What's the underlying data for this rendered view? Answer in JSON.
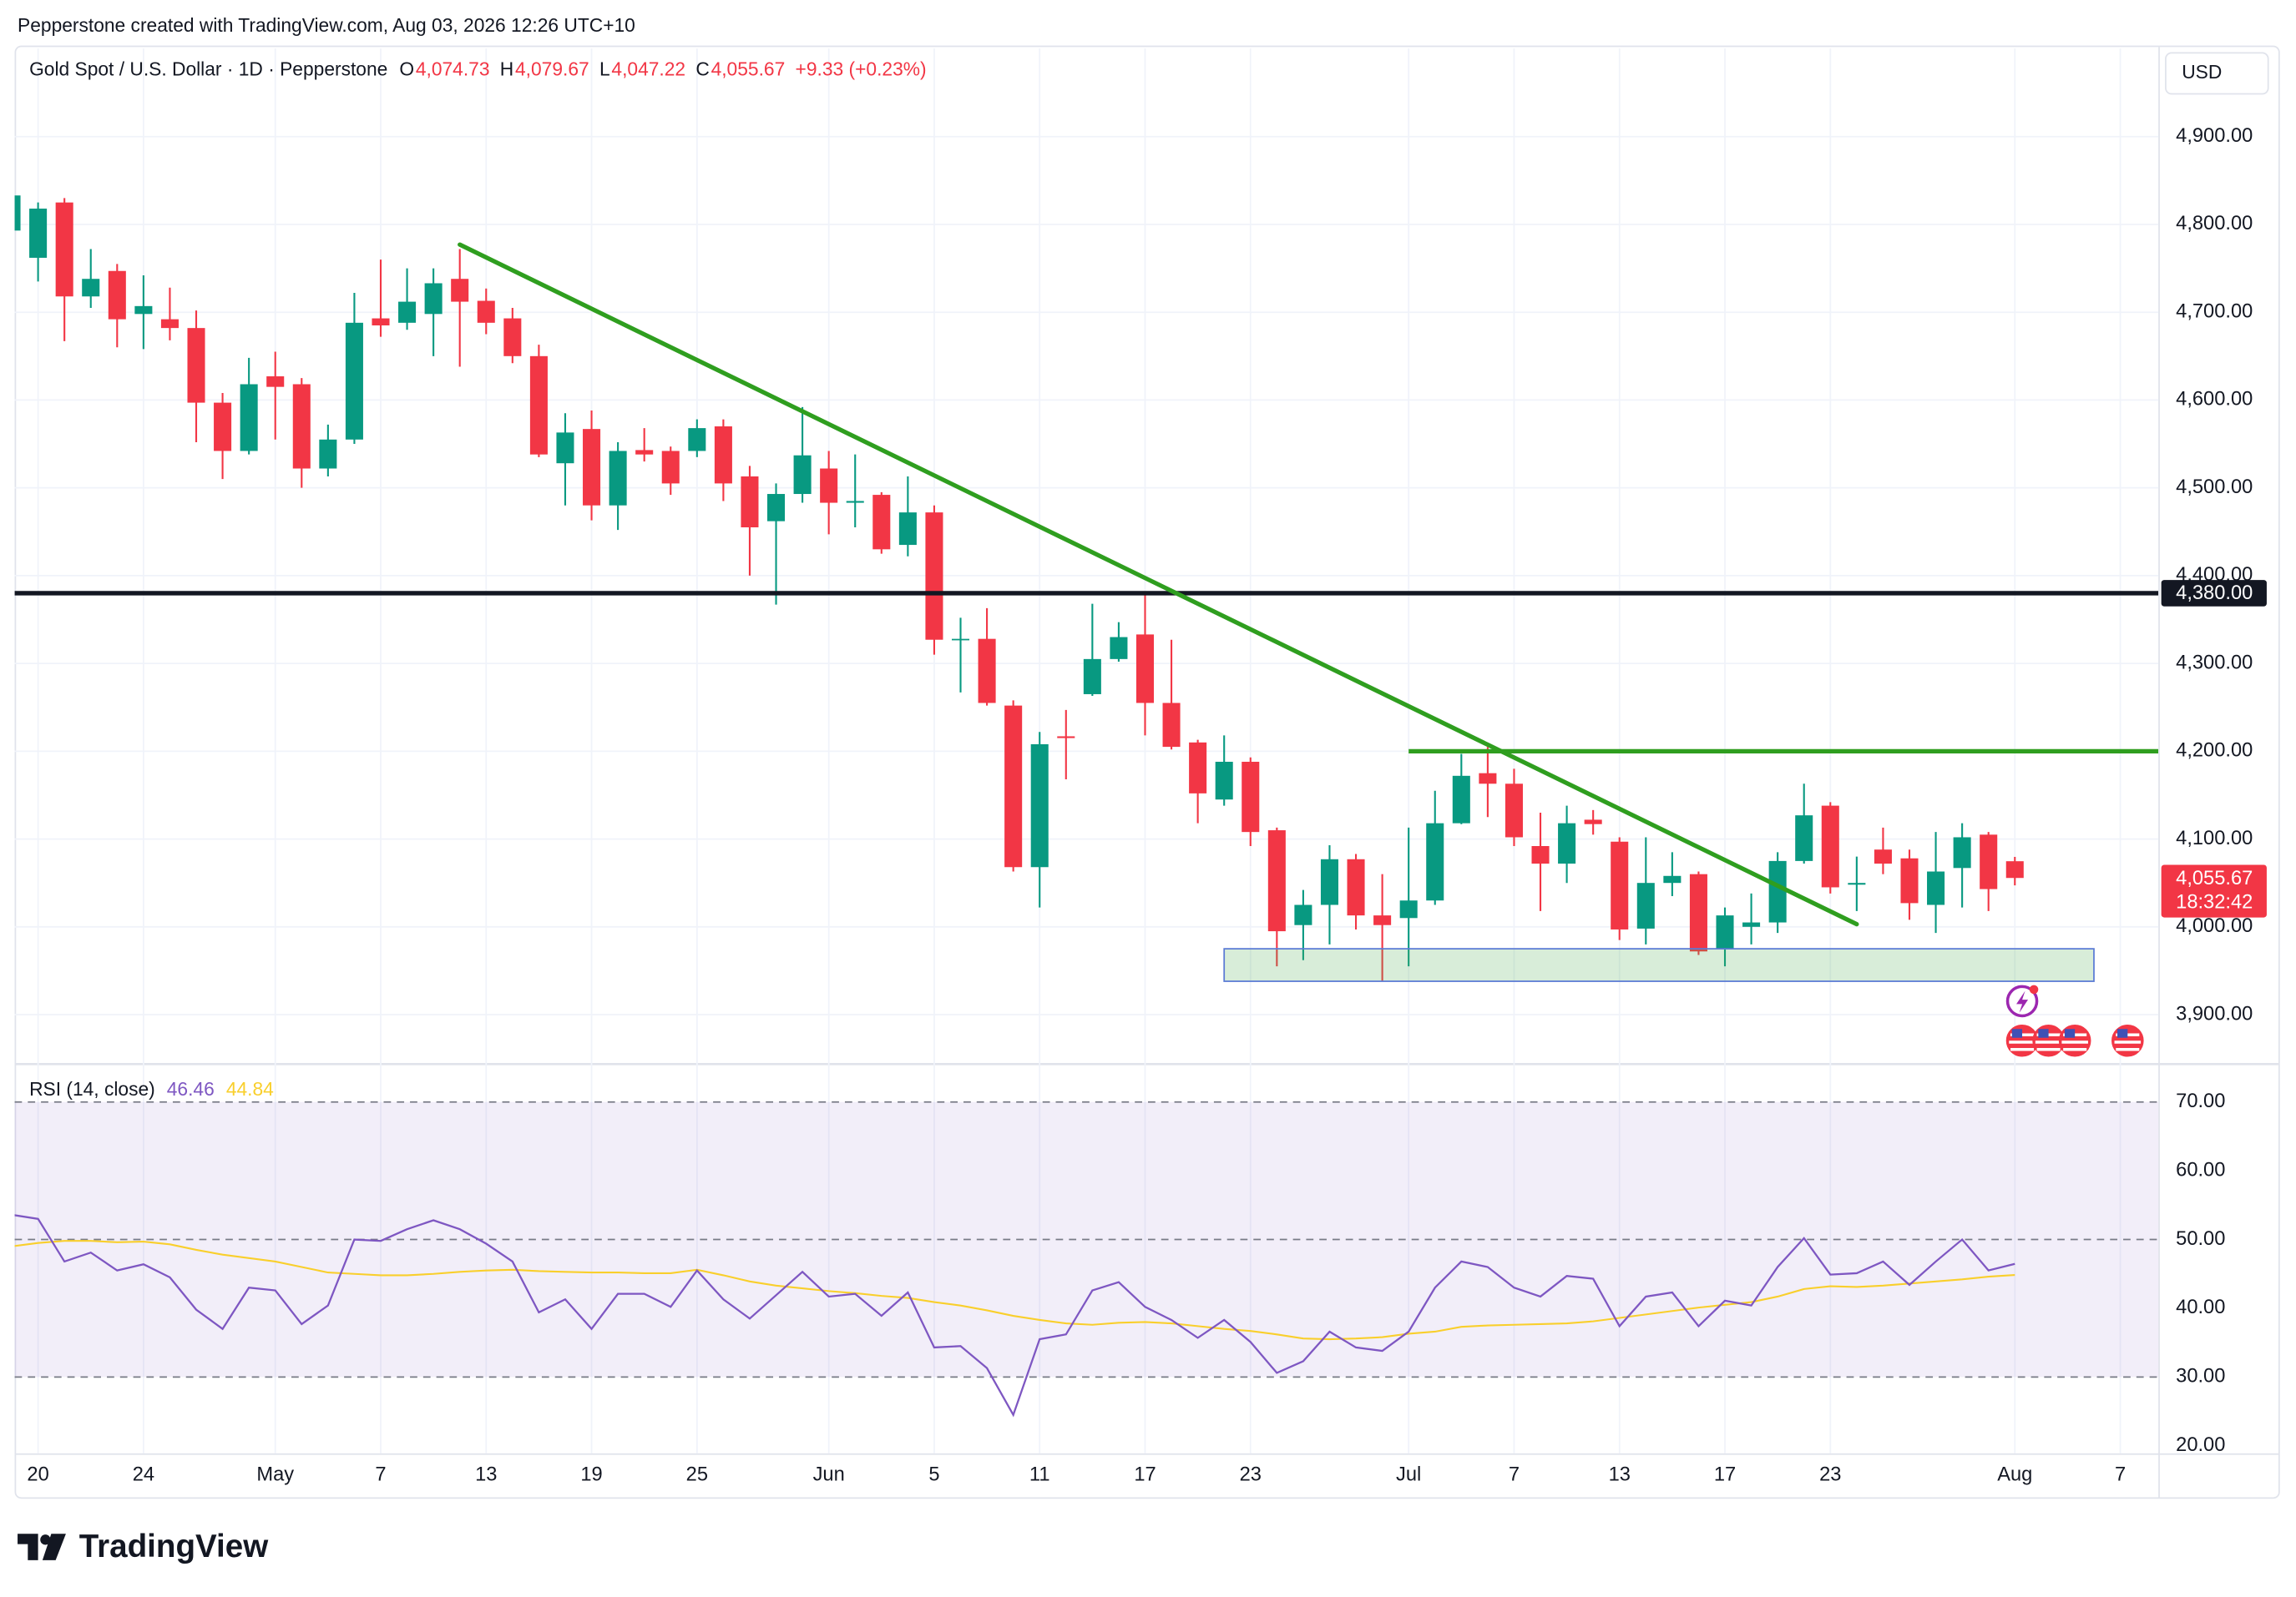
{
  "header": {
    "attribution": "Pepperstone created with TradingView.com, Aug 03, 2026 12:26 UTC+10",
    "logo": "TradingView"
  },
  "chart_data": [
    {
      "type": "candlestick",
      "title": "Gold Spot / U.S. Dollar · 1D · Pepperstone",
      "ohlc_legend": [
        {
          "key": "O",
          "value": "4,074.73"
        },
        {
          "key": "H",
          "value": "4,079.67"
        },
        {
          "key": "L",
          "value": "4,047.22"
        },
        {
          "key": "C",
          "value": "4,055.67"
        }
      ],
      "change": "+9.33 (+0.23%)",
      "currency": "USD",
      "up_color": "#089981",
      "down_color": "#f23645",
      "x": [
        "2026-04-17",
        "2026-04-20",
        "2026-04-21",
        "2026-04-22",
        "2026-04-23",
        "2026-04-24",
        "2026-04-27",
        "2026-04-28",
        "2026-04-29",
        "2026-04-30",
        "2026-05-01",
        "2026-05-04",
        "2026-05-05",
        "2026-05-06",
        "2026-05-07",
        "2026-05-08",
        "2026-05-11",
        "2026-05-12",
        "2026-05-13",
        "2026-05-14",
        "2026-05-15",
        "2026-05-18",
        "2026-05-19",
        "2026-05-20",
        "2026-05-21",
        "2026-05-22",
        "2026-05-25",
        "2026-05-26",
        "2026-05-27",
        "2026-05-28",
        "2026-05-29",
        "2026-06-01",
        "2026-06-02",
        "2026-06-03",
        "2026-06-04",
        "2026-06-05",
        "2026-06-08",
        "2026-06-09",
        "2026-06-10",
        "2026-06-11",
        "2026-06-12",
        "2026-06-15",
        "2026-06-16",
        "2026-06-17",
        "2026-06-18",
        "2026-06-19",
        "2026-06-22",
        "2026-06-23",
        "2026-06-24",
        "2026-06-25",
        "2026-06-26",
        "2026-06-29",
        "2026-06-30",
        "2026-07-01",
        "2026-07-02",
        "2026-07-03",
        "2026-07-06",
        "2026-07-07",
        "2026-07-08",
        "2026-07-09",
        "2026-07-10",
        "2026-07-13",
        "2026-07-14",
        "2026-07-15",
        "2026-07-16",
        "2026-07-17",
        "2026-07-20",
        "2026-07-21",
        "2026-07-22",
        "2026-07-23",
        "2026-07-24",
        "2026-07-27",
        "2026-07-28",
        "2026-07-29",
        "2026-07-30",
        "2026-07-31",
        "2026-08-03"
      ],
      "open": [
        4793,
        4762,
        4825,
        4718,
        4747,
        4698,
        4692,
        4682,
        4597,
        4542,
        4627,
        4618,
        4522,
        4555,
        4693,
        4688,
        4698,
        4738,
        4713,
        4693,
        4650,
        4528,
        4567,
        4480,
        4543,
        4542,
        4542,
        4570,
        4513,
        4462,
        4493,
        4522,
        4483,
        4492,
        4435,
        4472,
        4327,
        4328,
        4252,
        4068,
        4217,
        4265,
        4305,
        4333,
        4255,
        4210,
        4145,
        4188,
        4110,
        4002,
        4025,
        4077,
        4013,
        4010,
        4030,
        4118,
        4175,
        4163,
        4092,
        4072,
        4122,
        4097,
        3998,
        4050,
        4060,
        3975,
        4000,
        4005,
        4075,
        4138,
        4048,
        4088,
        4078,
        4025,
        4067,
        4105,
        4074.73
      ],
      "high": [
        4835,
        4825,
        4830,
        4772,
        4755,
        4742,
        4728,
        4702,
        4608,
        4648,
        4655,
        4625,
        4572,
        4722,
        4760,
        4750,
        4750,
        4772,
        4727,
        4705,
        4663,
        4585,
        4588,
        4552,
        4568,
        4547,
        4578,
        4578,
        4525,
        4505,
        4592,
        4542,
        4538,
        4495,
        4513,
        4480,
        4352,
        4363,
        4258,
        4222,
        4247,
        4368,
        4347,
        4380,
        4327,
        4213,
        4218,
        4193,
        4113,
        4042,
        4093,
        4083,
        4060,
        4113,
        4155,
        4197,
        4205,
        4180,
        4130,
        4138,
        4133,
        4102,
        4102,
        4085,
        4063,
        4022,
        4038,
        4085,
        4163,
        4142,
        4080,
        4113,
        4088,
        4108,
        4118,
        4108,
        4079.67
      ],
      "low": [
        4790,
        4735,
        4667,
        4705,
        4660,
        4658,
        4668,
        4552,
        4510,
        4538,
        4555,
        4500,
        4513,
        4550,
        4672,
        4680,
        4650,
        4638,
        4675,
        4642,
        4535,
        4480,
        4463,
        4452,
        4530,
        4492,
        4535,
        4485,
        4400,
        4367,
        4483,
        4447,
        4455,
        4425,
        4422,
        4310,
        4267,
        4252,
        4063,
        4022,
        4168,
        4263,
        4302,
        4218,
        4202,
        4118,
        4138,
        4092,
        3955,
        3962,
        3980,
        3997,
        3938,
        3955,
        4025,
        4117,
        4125,
        4092,
        4018,
        4050,
        4105,
        3985,
        3980,
        4035,
        3968,
        3955,
        3980,
        3993,
        4072,
        4038,
        4018,
        4060,
        4008,
        3993,
        4022,
        4018,
        4047.22
      ],
      "close": [
        4833,
        4818,
        4718,
        4738,
        4692,
        4707,
        4682,
        4597,
        4542,
        4618,
        4615,
        4522,
        4555,
        4688,
        4685,
        4712,
        4733,
        4712,
        4688,
        4650,
        4538,
        4563,
        4480,
        4542,
        4538,
        4505,
        4568,
        4505,
        4455,
        4493,
        4537,
        4483,
        4485,
        4430,
        4472,
        4327,
        4328,
        4255,
        4068,
        4208,
        4215,
        4305,
        4330,
        4255,
        4205,
        4152,
        4188,
        4108,
        3995,
        4025,
        4077,
        4013,
        4002,
        4030,
        4118,
        4172,
        4163,
        4102,
        4072,
        4118,
        4117,
        3997,
        4050,
        4058,
        3972,
        4013,
        4005,
        4075,
        4127,
        4045,
        4050,
        4072,
        4027,
        4063,
        4102,
        4043,
        4055.67
      ],
      "ylim": [
        3847,
        4997
      ],
      "yticks": [
        {
          "value": 3900,
          "label": "3,900.00"
        },
        {
          "value": 4000,
          "label": "4,000.00"
        },
        {
          "value": 4100,
          "label": "4,100.00"
        },
        {
          "value": 4200,
          "label": "4,200.00"
        },
        {
          "value": 4300,
          "label": "4,300.00"
        },
        {
          "value": 4400,
          "label": "4,400.00"
        },
        {
          "value": 4500,
          "label": "4,500.00"
        },
        {
          "value": 4600,
          "label": "4,600.00"
        },
        {
          "value": 4700,
          "label": "4,700.00"
        },
        {
          "value": 4800,
          "label": "4,800.00"
        },
        {
          "value": 4900,
          "label": "4,900.00"
        }
      ],
      "xticks": [
        {
          "value": "2026-04-20",
          "label": "20"
        },
        {
          "value": "2026-04-24",
          "label": "24"
        },
        {
          "value": "2026-05-01",
          "label": "May"
        },
        {
          "value": "2026-05-07",
          "label": "7"
        },
        {
          "value": "2026-05-13",
          "label": "13"
        },
        {
          "value": "2026-05-19",
          "label": "19"
        },
        {
          "value": "2026-05-25",
          "label": "25"
        },
        {
          "value": "2026-06-01",
          "label": "Jun"
        },
        {
          "value": "2026-06-05",
          "label": "5"
        },
        {
          "value": "2026-06-11",
          "label": "11"
        },
        {
          "value": "2026-06-17",
          "label": "17"
        },
        {
          "value": "2026-06-23",
          "label": "23"
        },
        {
          "value": "2026-07-01",
          "label": "Jul"
        },
        {
          "value": "2026-07-07",
          "label": "7"
        },
        {
          "value": "2026-07-13",
          "label": "13"
        },
        {
          "value": "2026-07-17",
          "label": "17"
        },
        {
          "value": "2026-07-23",
          "label": "23"
        },
        {
          "value": "2026-08-03",
          "label": "Aug"
        },
        {
          "value": "2026-08-07",
          "label": "7"
        }
      ],
      "grid": true,
      "last_price": {
        "label": "4,055.67",
        "countdown": "18:32:42"
      },
      "annotations": [
        {
          "type": "hline",
          "y": 4380,
          "label": "4,380.00",
          "color": "#131722"
        },
        {
          "type": "segment",
          "x": [
            "2026-05-12",
            "2026-07-24"
          ],
          "y": [
            4777,
            4003
          ],
          "color": "#2f9e1f"
        },
        {
          "type": "ray",
          "x": "2026-07-01",
          "y": 4200,
          "color": "#2f9e1f"
        },
        {
          "type": "box",
          "x": [
            "2026-06-22",
            "2026-08-06"
          ],
          "y": [
            3938,
            3975
          ],
          "color": "#4caf50",
          "border_color": "#5b7bd5"
        }
      ]
    },
    {
      "type": "line",
      "title": "RSI (14, close)",
      "ylim": [
        18.9,
        75.3
      ],
      "yticks": [
        {
          "value": 20,
          "label": "20.00"
        },
        {
          "value": 30,
          "label": "30.00"
        },
        {
          "value": 40,
          "label": "40.00"
        },
        {
          "value": 50,
          "label": "50.00"
        },
        {
          "value": 60,
          "label": "60.00"
        },
        {
          "value": 70,
          "label": "70.00"
        }
      ],
      "levels": [
        70,
        50,
        30
      ],
      "band_color": "#7e57c2",
      "series": [
        {
          "color": "#7e57c2",
          "legend_value": "46.46",
          "values": [
            53.6,
            53.0,
            46.8,
            48.1,
            45.5,
            46.4,
            44.5,
            39.8,
            37.0,
            43.0,
            42.6,
            37.7,
            40.4,
            50.0,
            49.8,
            51.5,
            52.8,
            51.5,
            49.4,
            46.8,
            39.4,
            41.3,
            37.0,
            42.1,
            42.1,
            40.2,
            45.5,
            41.3,
            38.5,
            41.9,
            45.3,
            41.7,
            42.1,
            38.9,
            42.3,
            34.3,
            34.5,
            31.3,
            24.5,
            35.5,
            36.2,
            42.6,
            43.8,
            40.2,
            38.3,
            35.7,
            38.3,
            35.1,
            30.6,
            32.3,
            36.6,
            34.3,
            33.8,
            36.6,
            43.0,
            46.8,
            46.0,
            43.0,
            41.7,
            44.7,
            44.3,
            37.4,
            41.7,
            42.3,
            37.4,
            41.1,
            40.4,
            46.0,
            50.2,
            44.9,
            45.1,
            46.8,
            43.4,
            46.8,
            50.0,
            45.5,
            46.46
          ]
        },
        {
          "color": "#f9cf2c",
          "legend_value": "44.84",
          "values": [
            49.0,
            49.5,
            49.8,
            49.8,
            49.6,
            49.7,
            49.3,
            48.5,
            47.8,
            47.3,
            46.8,
            46.0,
            45.2,
            45.0,
            44.8,
            44.8,
            45.0,
            45.3,
            45.5,
            45.6,
            45.4,
            45.3,
            45.2,
            45.2,
            45.1,
            45.1,
            45.6,
            44.8,
            43.9,
            43.3,
            42.9,
            42.5,
            42.2,
            41.8,
            41.5,
            40.9,
            40.4,
            39.7,
            38.9,
            38.3,
            37.8,
            37.6,
            37.9,
            38.0,
            37.8,
            37.4,
            37.0,
            36.7,
            36.2,
            35.6,
            35.5,
            35.6,
            35.8,
            36.3,
            36.6,
            37.3,
            37.5,
            37.6,
            37.7,
            37.8,
            38.1,
            38.6,
            39.1,
            39.6,
            40.1,
            40.5,
            40.9,
            41.7,
            42.8,
            43.2,
            43.1,
            43.3,
            43.6,
            43.9,
            44.2,
            44.6,
            44.84
          ]
        }
      ]
    }
  ]
}
